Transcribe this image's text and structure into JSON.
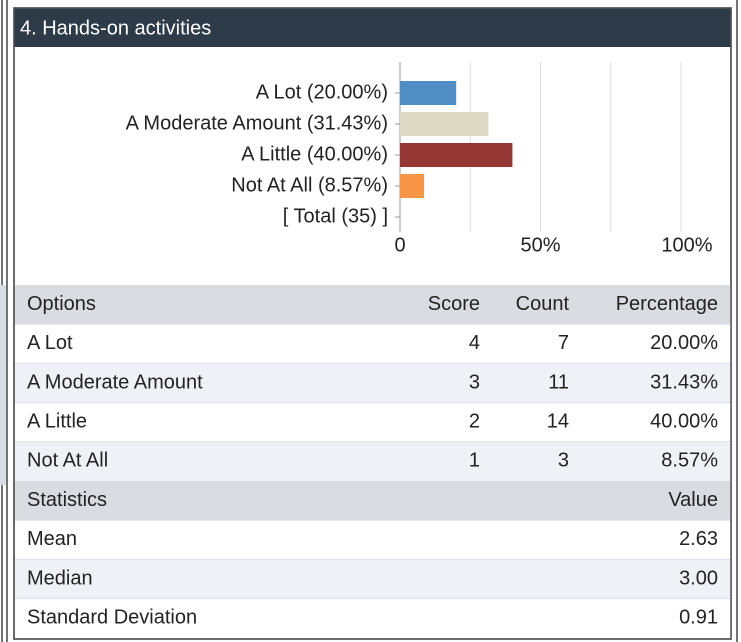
{
  "header": {
    "title": "4. Hands-on activities"
  },
  "chart_data": {
    "type": "bar",
    "orientation": "horizontal",
    "categories": [
      "A Lot (20.00%)",
      "A Moderate Amount (31.43%)",
      "A Little (40.00%)",
      "Not At All (8.57%)",
      "[ Total (35) ]"
    ],
    "values": [
      20,
      31.43,
      40,
      8.57,
      null
    ],
    "colors": [
      "#4f8dc4",
      "#ddd9c4",
      "#953735",
      "#f79646",
      null
    ],
    "xlim": [
      0,
      100
    ],
    "xticks": [
      0,
      {
        "value": 50,
        "label": "50%"
      },
      {
        "value": 100,
        "label": "100%"
      }
    ],
    "minor_xticks": [
      25,
      75
    ],
    "grid": true
  },
  "table": {
    "columns": [
      "Options",
      "Score",
      "Count",
      "Percentage"
    ],
    "rows": [
      [
        "A Lot",
        4,
        7,
        "20.00%"
      ],
      [
        "A Moderate Amount",
        3,
        11,
        "31.43%"
      ],
      [
        "A Little",
        2,
        14,
        "40.00%"
      ],
      [
        "Not At All",
        1,
        3,
        "8.57%"
      ]
    ]
  },
  "statistics": {
    "columns": [
      "Statistics",
      "Value"
    ],
    "rows": [
      [
        "Mean",
        2.63
      ],
      [
        "Median",
        "3.00"
      ],
      [
        "Standard Deviation",
        0.91
      ]
    ]
  }
}
